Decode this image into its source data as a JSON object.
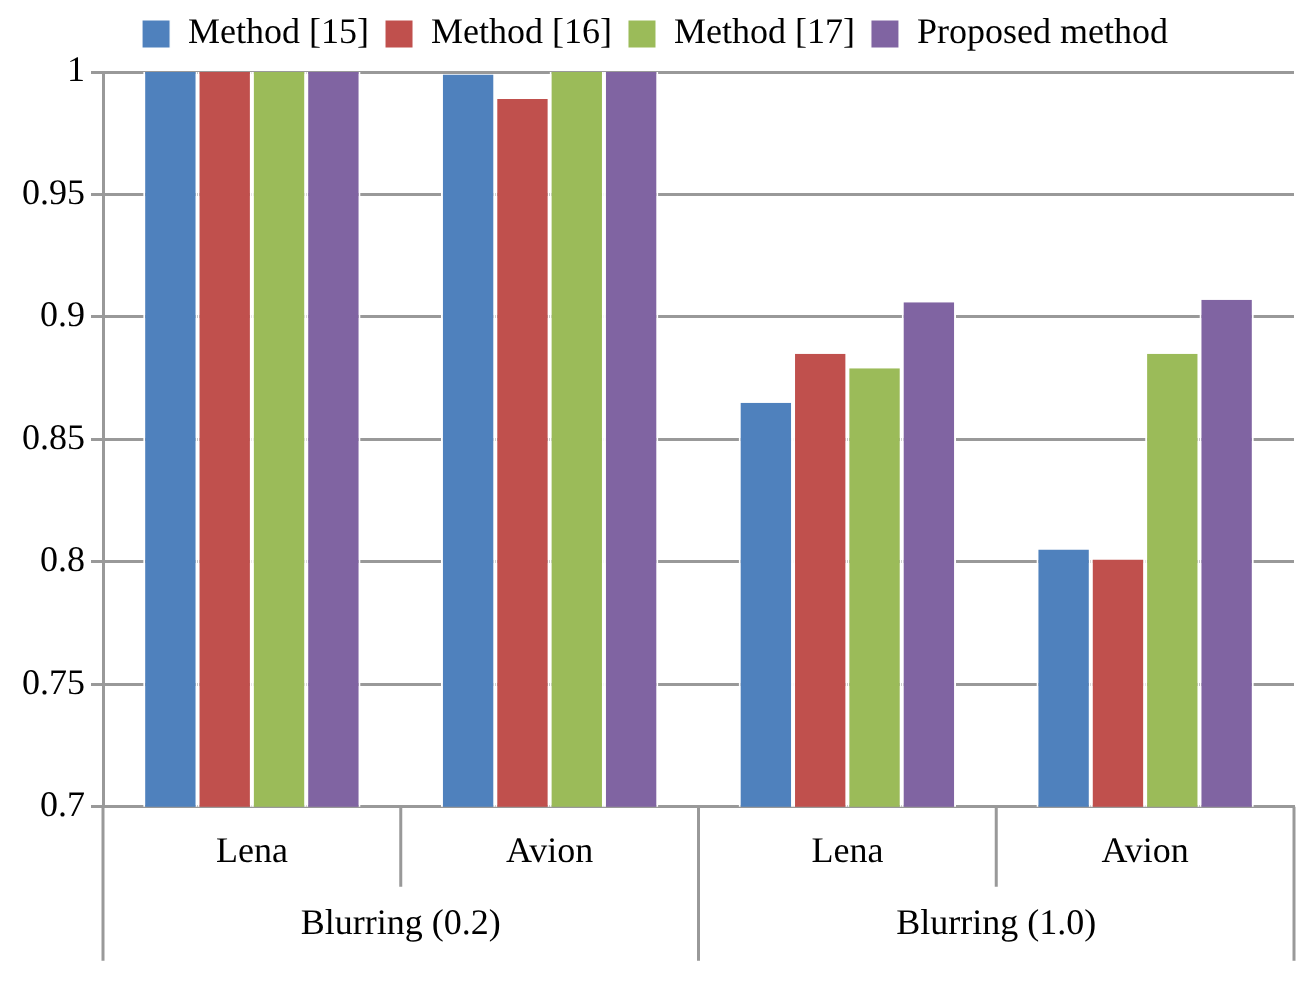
{
  "chart_data": {
    "type": "bar",
    "categories": [
      "Lena",
      "Avion",
      "Lena",
      "Avion"
    ],
    "series": [
      {
        "name": "Method [15]",
        "color": "#4f81bd",
        "values": [
          1,
          0.999,
          0.865,
          0.805
        ]
      },
      {
        "name": "Method [16]",
        "color": "#c0504d",
        "values": [
          1,
          0.989,
          0.885,
          0.801
        ]
      },
      {
        "name": "Method [17]",
        "color": "#9bbb59",
        "values": [
          1,
          1,
          0.879,
          0.885
        ]
      },
      {
        "name": "Proposed method",
        "color": "#8064a2",
        "values": [
          1,
          1,
          0.906,
          0.907
        ]
      }
    ],
    "annotations": [
      "Blurring (0.2)",
      "Blurring (1.0)"
    ],
    "ylim": [
      0.7,
      1
    ],
    "yticks": [
      0.7,
      0.75,
      0.8,
      0.85,
      0.9,
      0.95,
      1
    ],
    "grid": "y",
    "legend": "top"
  }
}
